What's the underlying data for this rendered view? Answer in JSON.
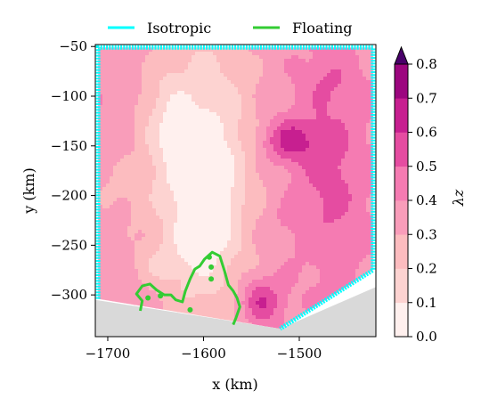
{
  "chart_data": {
    "type": "heatmap",
    "title": "",
    "xlabel": "x (km)",
    "ylabel": "y (km)",
    "xlim": [
      -1713,
      -1420
    ],
    "ylim": [
      -342,
      -48
    ],
    "xticks": [
      -1700,
      -1600,
      -1500
    ],
    "yticks": [
      -50,
      -100,
      -150,
      -200,
      -250,
      -300
    ],
    "colorbar": {
      "label": "λz",
      "min": 0.0,
      "max": 0.8,
      "ticks": [
        "0.0",
        "0.1",
        "0.2",
        "0.3",
        "0.4",
        "0.5",
        "0.6",
        "0.7",
        "0.8"
      ],
      "levels": [
        0.0,
        0.1,
        0.2,
        0.3,
        0.4,
        0.5,
        0.6,
        0.7,
        0.8
      ],
      "extend": "max",
      "colors": [
        "#fff0ee",
        "#fdd3d1",
        "#fcbcbf",
        "#f99dba",
        "#f57bb2",
        "#e54ca1",
        "#c71f90",
        "#9c067f",
        "#6e0077"
      ],
      "extend_color": "#49006a"
    },
    "domain_boundary": {
      "name": "Isotropic",
      "color": "#00ffff",
      "x": [
        -1710,
        -1710,
        -1423,
        -1423,
        -1520
      ],
      "y": [
        -304,
        -51,
        -51,
        -275,
        -334
      ]
    },
    "floating_line": {
      "name": "Floating",
      "color": "#33cc33",
      "x": [
        -1666,
        -1664,
        -1670,
        -1664,
        -1656,
        -1649,
        -1641,
        -1634,
        -1629,
        -1622,
        -1619,
        -1614,
        -1609,
        -1604,
        -1599,
        -1591,
        -1583,
        -1578,
        -1574,
        -1569,
        -1565,
        -1562,
        -1566,
        -1569
      ],
      "y": [
        -316,
        -306,
        -299,
        -291,
        -289,
        -295,
        -300,
        -300,
        -305,
        -307,
        -296,
        -284,
        -274,
        -271,
        -264,
        -257,
        -261,
        -276,
        -290,
        -296,
        -303,
        -312,
        -323,
        -330
      ]
    },
    "floating_dots": {
      "x": [
        -1658,
        -1645,
        -1614,
        -1592,
        -1592,
        -1594
      ],
      "y": [
        -303,
        -301,
        -315,
        -284,
        -272,
        -262
      ]
    },
    "grounded_region": {
      "color": "#d9d9d9",
      "x": [
        -1713,
        -1520,
        -1420,
        -1420,
        -1713
      ],
      "y": [
        -305,
        -334,
        -292,
        -342,
        -342
      ]
    },
    "field": {
      "blobs": [
        {
          "x": -1600,
          "y": -180,
          "sx": 55,
          "sy": 150,
          "a": -0.34
        },
        {
          "x": -1600,
          "y": -205,
          "sx": 24,
          "sy": 60,
          "a": -0.18
        },
        {
          "x": -1640,
          "y": -130,
          "sx": 24,
          "sy": 55,
          "a": -0.12
        },
        {
          "x": -1646,
          "y": -268,
          "sx": 26,
          "sy": 20,
          "a": -0.1
        },
        {
          "x": -1512,
          "y": -145,
          "sx": 28,
          "sy": 22,
          "a": 0.26
        },
        {
          "x": -1468,
          "y": -180,
          "sx": 36,
          "sy": 90,
          "a": 0.16
        },
        {
          "x": -1540,
          "y": -306,
          "sx": 22,
          "sy": 24,
          "a": 0.26
        },
        {
          "x": -1525,
          "y": -230,
          "sx": 25,
          "sy": 25,
          "a": 0.05
        },
        {
          "x": -1690,
          "y": -195,
          "sx": 30,
          "sy": 35,
          "a": -0.08
        },
        {
          "x": -1468,
          "y": -85,
          "sx": 30,
          "sy": 25,
          "a": 0.08
        }
      ],
      "base": 0.38
    }
  },
  "legend": {
    "items": [
      {
        "label": "Isotropic",
        "color": "#00ffff"
      },
      {
        "label": "Floating",
        "color": "#33cc33"
      }
    ]
  }
}
